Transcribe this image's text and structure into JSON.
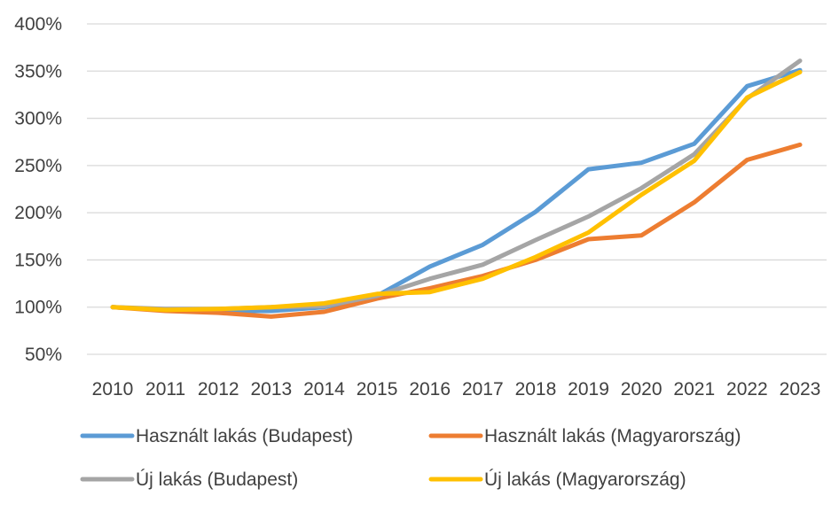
{
  "chart_data": {
    "type": "line",
    "title": "",
    "xlabel": "",
    "ylabel": "",
    "categories": [
      "2010",
      "2011",
      "2012",
      "2013",
      "2014",
      "2015",
      "2016",
      "2017",
      "2018",
      "2019",
      "2020",
      "2021",
      "2022",
      "2023"
    ],
    "y_tick_values": [
      50,
      100,
      150,
      200,
      250,
      300,
      350,
      400
    ],
    "y_tick_labels": [
      "50%",
      "100%",
      "150%",
      "200%",
      "250%",
      "300%",
      "350%",
      "400%"
    ],
    "ylim": [
      50,
      400
    ],
    "y_unit": "%",
    "grid": true,
    "legend_position": "bottom",
    "series": [
      {
        "name": "Használt lakás (Budapest)",
        "color": "#5b9bd5",
        "values": [
          100,
          97,
          96,
          96,
          100,
          112,
          143,
          166,
          201,
          246,
          253,
          273,
          334,
          351
        ]
      },
      {
        "name": "Használt lakás (Magyarország)",
        "color": "#ed7d31",
        "values": [
          100,
          96,
          94,
          90,
          95,
          109,
          120,
          133,
          150,
          172,
          176,
          211,
          256,
          272
        ]
      },
      {
        "name": "Új lakás (Budapest)",
        "color": "#a5a5a5",
        "values": [
          100,
          98,
          98,
          100,
          101,
          112,
          130,
          145,
          171,
          196,
          226,
          262,
          321,
          361
        ]
      },
      {
        "name": "Új lakás (Magyarország)",
        "color": "#ffc000",
        "values": [
          100,
          97,
          98,
          100,
          104,
          114,
          116,
          130,
          153,
          179,
          219,
          255,
          322,
          349
        ]
      }
    ]
  }
}
